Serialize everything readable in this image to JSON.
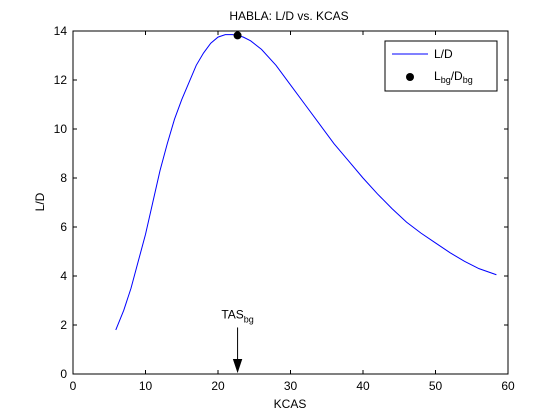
{
  "chart_data": {
    "type": "line",
    "title": "HABLA: L/D vs. KCAS",
    "xlabel": "KCAS",
    "ylabel": "L/D",
    "xlim": [
      0,
      60
    ],
    "ylim": [
      0,
      14
    ],
    "xticks": [
      0,
      10,
      20,
      30,
      40,
      50,
      60
    ],
    "yticks": [
      0,
      2,
      4,
      6,
      8,
      10,
      12,
      14
    ],
    "grid": false,
    "legend_position": "top-right",
    "series": [
      {
        "name": "L/D",
        "color": "#0000ff",
        "x": [
          5.9,
          7,
          8,
          9,
          10,
          11,
          12,
          13,
          14,
          15,
          16,
          17,
          18,
          19,
          20,
          21,
          22,
          22.7,
          23.5,
          24.5,
          26,
          28,
          30,
          32,
          34,
          36,
          38,
          40,
          42,
          44,
          46,
          48,
          50,
          52,
          54,
          56,
          58.4
        ],
        "y": [
          1.8,
          2.6,
          3.5,
          4.6,
          5.7,
          7.0,
          8.3,
          9.4,
          10.4,
          11.2,
          11.9,
          12.6,
          13.1,
          13.5,
          13.75,
          13.85,
          13.85,
          13.82,
          13.75,
          13.6,
          13.25,
          12.6,
          11.8,
          11.0,
          10.2,
          9.4,
          8.7,
          8.0,
          7.35,
          6.75,
          6.2,
          5.75,
          5.35,
          4.95,
          4.6,
          4.3,
          4.05
        ]
      }
    ],
    "best_glide_point": {
      "x": 22.7,
      "y": 13.82,
      "label_main": "L",
      "label_sub1": "bg",
      "label_sep": "/D",
      "label_sub2": "bg",
      "color": "#000000"
    },
    "annotation": {
      "text_main": "TAS",
      "text_sub": "bg",
      "x": 22.7,
      "arrow_from_y": 1.9,
      "arrow_to_y": 0.1
    },
    "line_color": "#0000ff",
    "axis_color": "#000000"
  }
}
